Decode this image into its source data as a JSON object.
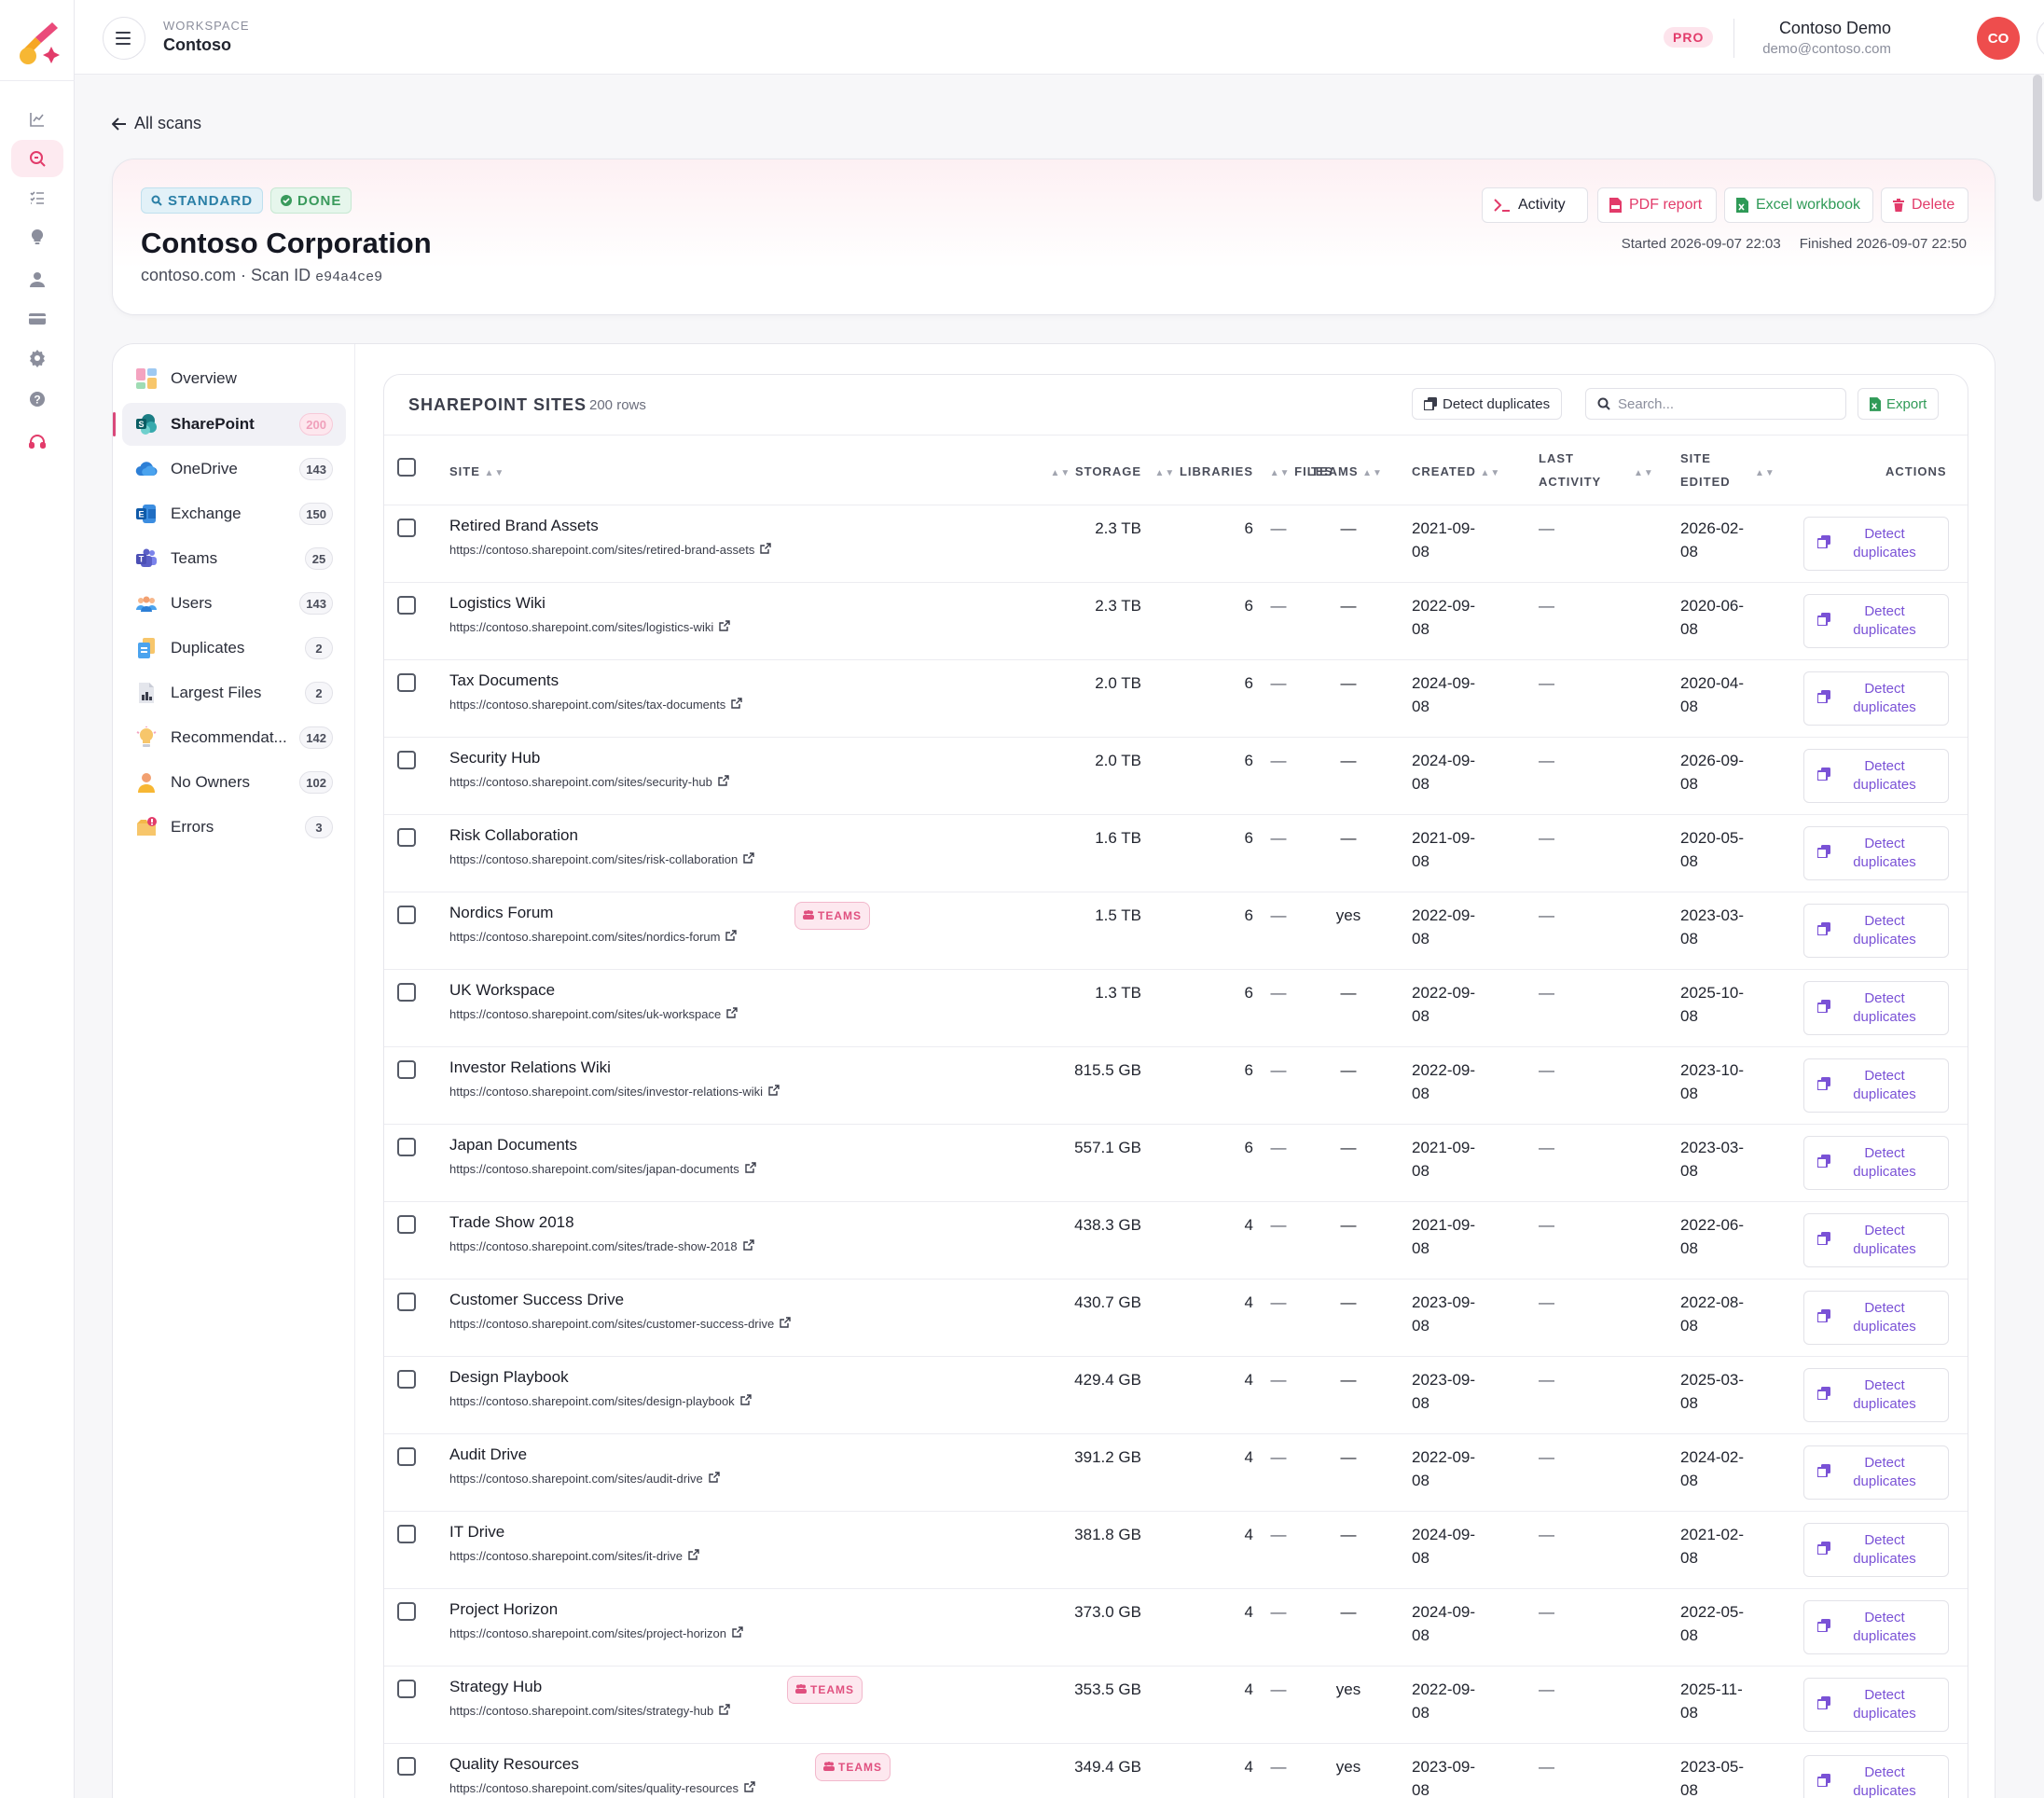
{
  "topbar": {
    "workspace_label": "WORKSPACE",
    "workspace_name": "Contoso",
    "plan_badge": "PRO",
    "user_name": "Contoso Demo",
    "user_email": "demo@contoso.com",
    "avatar_initials": "CO"
  },
  "back_link": "All scans",
  "scan": {
    "type_badge": "STANDARD",
    "status_badge": "DONE",
    "org_name": "Contoso Corporation",
    "domain": "contoso.com · Scan ID",
    "scan_id": "e94a4ce9",
    "started": "Started 2026-09-07 22:03",
    "finished": "Finished 2026-09-07 22:50",
    "actions": {
      "activity": "Activity",
      "pdf": "PDF report",
      "excel": "Excel workbook",
      "delete": "Delete"
    }
  },
  "sidebar": {
    "items": [
      {
        "label": "Overview",
        "count": "",
        "icon": "overview-icon"
      },
      {
        "label": "SharePoint",
        "count": "200",
        "icon": "sharepoint-icon"
      },
      {
        "label": "OneDrive",
        "count": "143",
        "icon": "onedrive-icon"
      },
      {
        "label": "Exchange",
        "count": "150",
        "icon": "exchange-icon"
      },
      {
        "label": "Teams",
        "count": "25",
        "icon": "teams-icon"
      },
      {
        "label": "Users",
        "count": "143",
        "icon": "users-icon"
      },
      {
        "label": "Duplicates",
        "count": "2",
        "icon": "duplicates-icon"
      },
      {
        "label": "Largest Files",
        "count": "2",
        "icon": "largest-files-icon"
      },
      {
        "label": "Recommendat...",
        "count": "142",
        "icon": "recommendations-icon"
      },
      {
        "label": "No Owners",
        "count": "102",
        "icon": "no-owners-icon"
      },
      {
        "label": "Errors",
        "count": "3",
        "icon": "errors-icon"
      }
    ]
  },
  "table": {
    "title": "SHAREPOINT SITES",
    "row_count": "200 rows",
    "detect_button": "Detect duplicates",
    "search_placeholder": "Search...",
    "export_button": "Export",
    "columns": {
      "site": "SITE",
      "storage": "STORAGE",
      "libraries": "LIBRARIES",
      "files": "FILES",
      "teams": "TEAMS",
      "created": "CREATED",
      "last_activity_1": "LAST",
      "last_activity_2": "ACTIVITY",
      "site_edited_1": "SITE",
      "site_edited_2": "EDITED",
      "actions": "ACTIONS"
    },
    "team_badge": "TEAMS",
    "action_label_1": "Detect",
    "action_label_2": "duplicates",
    "rows": [
      {
        "name": "Retired Brand Assets",
        "url": "https://contoso.sharepoint.com/sites/retired-brand-assets",
        "storage": "2.3 TB",
        "libraries": "6",
        "files": "—",
        "teams": "—",
        "created_1": "2021-09-",
        "created_2": "08",
        "last": "—",
        "edited_1": "2026-02-",
        "edited_2": "08",
        "is_team": false
      },
      {
        "name": "Logistics Wiki",
        "url": "https://contoso.sharepoint.com/sites/logistics-wiki",
        "storage": "2.3 TB",
        "libraries": "6",
        "files": "—",
        "teams": "—",
        "created_1": "2022-09-",
        "created_2": "08",
        "last": "—",
        "edited_1": "2020-06-",
        "edited_2": "08",
        "is_team": false
      },
      {
        "name": "Tax Documents",
        "url": "https://contoso.sharepoint.com/sites/tax-documents",
        "storage": "2.0 TB",
        "libraries": "6",
        "files": "—",
        "teams": "—",
        "created_1": "2024-09-",
        "created_2": "08",
        "last": "—",
        "edited_1": "2020-04-",
        "edited_2": "08",
        "is_team": false
      },
      {
        "name": "Security Hub",
        "url": "https://contoso.sharepoint.com/sites/security-hub",
        "storage": "2.0 TB",
        "libraries": "6",
        "files": "—",
        "teams": "—",
        "created_1": "2024-09-",
        "created_2": "08",
        "last": "—",
        "edited_1": "2026-09-",
        "edited_2": "08",
        "is_team": false
      },
      {
        "name": "Risk Collaboration",
        "url": "https://contoso.sharepoint.com/sites/risk-collaboration",
        "storage": "1.6 TB",
        "libraries": "6",
        "files": "—",
        "teams": "—",
        "created_1": "2021-09-",
        "created_2": "08",
        "last": "—",
        "edited_1": "2020-05-",
        "edited_2": "08",
        "is_team": false
      },
      {
        "name": "Nordics Forum",
        "url": "https://contoso.sharepoint.com/sites/nordics-forum",
        "storage": "1.5 TB",
        "libraries": "6",
        "files": "—",
        "teams": "yes",
        "created_1": "2022-09-",
        "created_2": "08",
        "last": "—",
        "edited_1": "2023-03-",
        "edited_2": "08",
        "is_team": true
      },
      {
        "name": "UK Workspace",
        "url": "https://contoso.sharepoint.com/sites/uk-workspace",
        "storage": "1.3 TB",
        "libraries": "6",
        "files": "—",
        "teams": "—",
        "created_1": "2022-09-",
        "created_2": "08",
        "last": "—",
        "edited_1": "2025-10-",
        "edited_2": "08",
        "is_team": false
      },
      {
        "name": "Investor Relations Wiki",
        "url": "https://contoso.sharepoint.com/sites/investor-relations-wiki",
        "storage": "815.5 GB",
        "libraries": "6",
        "files": "—",
        "teams": "—",
        "created_1": "2022-09-",
        "created_2": "08",
        "last": "—",
        "edited_1": "2023-10-",
        "edited_2": "08",
        "is_team": false
      },
      {
        "name": "Japan Documents",
        "url": "https://contoso.sharepoint.com/sites/japan-documents",
        "storage": "557.1 GB",
        "libraries": "6",
        "files": "—",
        "teams": "—",
        "created_1": "2021-09-",
        "created_2": "08",
        "last": "—",
        "edited_1": "2023-03-",
        "edited_2": "08",
        "is_team": false
      },
      {
        "name": "Trade Show 2018",
        "url": "https://contoso.sharepoint.com/sites/trade-show-2018",
        "storage": "438.3 GB",
        "libraries": "4",
        "files": "—",
        "teams": "—",
        "created_1": "2021-09-",
        "created_2": "08",
        "last": "—",
        "edited_1": "2022-06-",
        "edited_2": "08",
        "is_team": false
      },
      {
        "name": "Customer Success Drive",
        "url": "https://contoso.sharepoint.com/sites/customer-success-drive",
        "storage": "430.7 GB",
        "libraries": "4",
        "files": "—",
        "teams": "—",
        "created_1": "2023-09-",
        "created_2": "08",
        "last": "—",
        "edited_1": "2022-08-",
        "edited_2": "08",
        "is_team": false
      },
      {
        "name": "Design Playbook",
        "url": "https://contoso.sharepoint.com/sites/design-playbook",
        "storage": "429.4 GB",
        "libraries": "4",
        "files": "—",
        "teams": "—",
        "created_1": "2023-09-",
        "created_2": "08",
        "last": "—",
        "edited_1": "2025-03-",
        "edited_2": "08",
        "is_team": false
      },
      {
        "name": "Audit Drive",
        "url": "https://contoso.sharepoint.com/sites/audit-drive",
        "storage": "391.2 GB",
        "libraries": "4",
        "files": "—",
        "teams": "—",
        "created_1": "2022-09-",
        "created_2": "08",
        "last": "—",
        "edited_1": "2024-02-",
        "edited_2": "08",
        "is_team": false
      },
      {
        "name": "IT Drive",
        "url": "https://contoso.sharepoint.com/sites/it-drive",
        "storage": "381.8 GB",
        "libraries": "4",
        "files": "—",
        "teams": "—",
        "created_1": "2024-09-",
        "created_2": "08",
        "last": "—",
        "edited_1": "2021-02-",
        "edited_2": "08",
        "is_team": false
      },
      {
        "name": "Project Horizon",
        "url": "https://contoso.sharepoint.com/sites/project-horizon",
        "storage": "373.0 GB",
        "libraries": "4",
        "files": "—",
        "teams": "—",
        "created_1": "2024-09-",
        "created_2": "08",
        "last": "—",
        "edited_1": "2022-05-",
        "edited_2": "08",
        "is_team": false
      },
      {
        "name": "Strategy Hub",
        "url": "https://contoso.sharepoint.com/sites/strategy-hub",
        "storage": "353.5 GB",
        "libraries": "4",
        "files": "—",
        "teams": "yes",
        "created_1": "2022-09-",
        "created_2": "08",
        "last": "—",
        "edited_1": "2025-11-",
        "edited_2": "08",
        "is_team": true
      },
      {
        "name": "Quality Resources",
        "url": "https://contoso.sharepoint.com/sites/quality-resources",
        "storage": "349.4 GB",
        "libraries": "4",
        "files": "—",
        "teams": "yes",
        "created_1": "2023-09-",
        "created_2": "08",
        "last": "—",
        "edited_1": "2023-05-",
        "edited_2": "08",
        "is_team": true
      }
    ]
  },
  "colors": {
    "accent": "#e23b6a",
    "purple_action": "#7a52d6",
    "excel_green": "#2f9a57",
    "standard_blue": "#2a7fa6"
  }
}
